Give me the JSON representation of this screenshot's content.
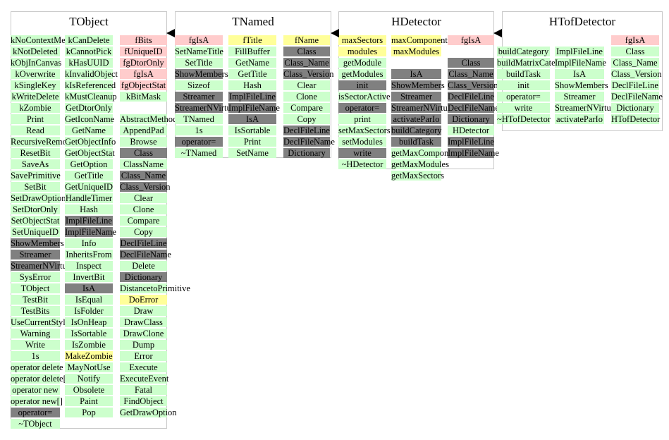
{
  "colors": {
    "green": "#ccffcc",
    "pink": "#ffcccc",
    "yellow": "#ffff99",
    "gray": "#808080"
  },
  "classes": [
    {
      "name": "TObject",
      "columns": [
        [
          [
            "kNoContextMenu",
            "green"
          ],
          [
            "kNotDeleted",
            "green"
          ],
          [
            "kObjInCanvas",
            "green"
          ],
          [
            "kOverwrite",
            "green"
          ],
          [
            "kSingleKey",
            "green"
          ],
          [
            "kWriteDelete",
            "green"
          ],
          [
            "kZombie",
            "green"
          ],
          [
            "Print",
            "green"
          ],
          [
            "Read",
            "green"
          ],
          [
            "RecursiveRemove",
            "green"
          ],
          [
            "ResetBit",
            "green"
          ],
          [
            "SaveAs",
            "green"
          ],
          [
            "SavePrimitive",
            "green"
          ],
          [
            "SetBit",
            "green"
          ],
          [
            "SetDrawOption",
            "green"
          ],
          [
            "SetDtorOnly",
            "green"
          ],
          [
            "SetObjectStat",
            "green"
          ],
          [
            "SetUniqueID",
            "green"
          ],
          [
            "ShowMembers",
            "gray"
          ],
          [
            "Streamer",
            "gray"
          ],
          [
            "StreamerNVirtual",
            "gray"
          ],
          [
            "SysError",
            "green"
          ],
          [
            "TObject",
            "green"
          ],
          [
            "TestBit",
            "green"
          ],
          [
            "TestBits",
            "green"
          ],
          [
            "UseCurrentStyle",
            "green"
          ],
          [
            "Warning",
            "green"
          ],
          [
            "Write",
            "green"
          ],
          [
            "1s",
            "green"
          ],
          [
            "operator delete",
            "green"
          ],
          [
            "operator delete[]",
            "green"
          ],
          [
            "operator new",
            "green"
          ],
          [
            "operator new[]",
            "green"
          ],
          [
            "operator=",
            "gray"
          ],
          [
            "~TObject",
            "green"
          ]
        ],
        [
          [
            "kCanDelete",
            "green"
          ],
          [
            "kCannotPick",
            "green"
          ],
          [
            "kHasUUID",
            "green"
          ],
          [
            "kInvalidObject",
            "green"
          ],
          [
            "kIsReferenced",
            "green"
          ],
          [
            "kMustCleanup",
            "green"
          ],
          [
            "GetDtorOnly",
            "green"
          ],
          [
            "GetIconName",
            "green"
          ],
          [
            "GetName",
            "green"
          ],
          [
            "GetObjectInfo",
            "green"
          ],
          [
            "GetObjectStat",
            "green"
          ],
          [
            "GetOption",
            "green"
          ],
          [
            "GetTitle",
            "green"
          ],
          [
            "GetUniqueID",
            "green"
          ],
          [
            "HandleTimer",
            "green"
          ],
          [
            "Hash",
            "green"
          ],
          [
            "ImplFileLine",
            "gray"
          ],
          [
            "ImplFileName",
            "gray"
          ],
          [
            "Info",
            "green"
          ],
          [
            "InheritsFrom",
            "green"
          ],
          [
            "Inspect",
            "green"
          ],
          [
            "InvertBit",
            "green"
          ],
          [
            "IsA",
            "gray"
          ],
          [
            "IsEqual",
            "green"
          ],
          [
            "IsFolder",
            "green"
          ],
          [
            "IsOnHeap",
            "green"
          ],
          [
            "IsSortable",
            "green"
          ],
          [
            "IsZombie",
            "green"
          ],
          [
            "MakeZombie",
            "yellow"
          ],
          [
            "MayNotUse",
            "green"
          ],
          [
            "Notify",
            "green"
          ],
          [
            "Obsolete",
            "green"
          ],
          [
            "Paint",
            "green"
          ],
          [
            "Pop",
            "green"
          ]
        ],
        [
          [
            "fBits",
            "pink"
          ],
          [
            "fUniqueID",
            "pink"
          ],
          [
            "fgDtorOnly",
            "pink"
          ],
          [
            "fgIsA",
            "pink"
          ],
          [
            "fgObjectStat",
            "pink"
          ],
          [
            "kBitMask",
            "green"
          ],
          [
            "",
            "none"
          ],
          [
            "AbstractMethod",
            "green"
          ],
          [
            "AppendPad",
            "green"
          ],
          [
            "Browse",
            "green"
          ],
          [
            "Class",
            "gray"
          ],
          [
            "ClassName",
            "green"
          ],
          [
            "Class_Name",
            "gray"
          ],
          [
            "Class_Version",
            "gray"
          ],
          [
            "Clear",
            "green"
          ],
          [
            "Clone",
            "green"
          ],
          [
            "Compare",
            "green"
          ],
          [
            "Copy",
            "green"
          ],
          [
            "DeclFileLine",
            "gray"
          ],
          [
            "DeclFileName",
            "gray"
          ],
          [
            "Delete",
            "green"
          ],
          [
            "Dictionary",
            "gray"
          ],
          [
            "DistancetoPrimitive",
            "green"
          ],
          [
            "DoError",
            "yellow"
          ],
          [
            "Draw",
            "green"
          ],
          [
            "DrawClass",
            "green"
          ],
          [
            "DrawClone",
            "green"
          ],
          [
            "Dump",
            "green"
          ],
          [
            "Error",
            "green"
          ],
          [
            "Execute",
            "green"
          ],
          [
            "ExecuteEvent",
            "green"
          ],
          [
            "Fatal",
            "green"
          ],
          [
            "FindObject",
            "green"
          ],
          [
            "GetDrawOption",
            "green"
          ]
        ]
      ]
    },
    {
      "name": "TNamed",
      "columns": [
        [
          [
            "fgIsA",
            "pink"
          ],
          [
            "SetNameTitle",
            "green"
          ],
          [
            "SetTitle",
            "green"
          ],
          [
            "ShowMembers",
            "gray"
          ],
          [
            "Sizeof",
            "green"
          ],
          [
            "Streamer",
            "gray"
          ],
          [
            "StreamerNVirtual",
            "gray"
          ],
          [
            "TNamed",
            "green"
          ],
          [
            "1s",
            "green"
          ],
          [
            "operator=",
            "gray"
          ],
          [
            "~TNamed",
            "green"
          ]
        ],
        [
          [
            "fTitle",
            "yellow"
          ],
          [
            "FillBuffer",
            "green"
          ],
          [
            "GetName",
            "green"
          ],
          [
            "GetTitle",
            "green"
          ],
          [
            "Hash",
            "green"
          ],
          [
            "ImplFileLine",
            "gray"
          ],
          [
            "ImplFileName",
            "gray"
          ],
          [
            "IsA",
            "gray"
          ],
          [
            "IsSortable",
            "green"
          ],
          [
            "Print",
            "green"
          ],
          [
            "SetName",
            "green"
          ]
        ],
        [
          [
            "fName",
            "yellow"
          ],
          [
            "Class",
            "gray"
          ],
          [
            "Class_Name",
            "gray"
          ],
          [
            "Class_Version",
            "gray"
          ],
          [
            "Clear",
            "green"
          ],
          [
            "Clone",
            "green"
          ],
          [
            "Compare",
            "green"
          ],
          [
            "Copy",
            "green"
          ],
          [
            "DeclFileLine",
            "gray"
          ],
          [
            "DeclFileName",
            "gray"
          ],
          [
            "Dictionary",
            "gray"
          ]
        ]
      ]
    },
    {
      "name": "HDetector",
      "columns": [
        [
          [
            "maxSectors",
            "yellow"
          ],
          [
            "modules",
            "yellow"
          ],
          [
            "getModule",
            "green"
          ],
          [
            "getModules",
            "green"
          ],
          [
            "init",
            "gray"
          ],
          [
            "isSectorActive",
            "green"
          ],
          [
            "operator=",
            "gray"
          ],
          [
            "print",
            "green"
          ],
          [
            "setMaxSectors",
            "green"
          ],
          [
            "setModules",
            "green"
          ],
          [
            "write",
            "gray"
          ],
          [
            "~HDetector",
            "green"
          ]
        ],
        [
          [
            "maxComponents",
            "yellow"
          ],
          [
            "maxModules",
            "yellow"
          ],
          [
            "",
            "none"
          ],
          [
            "IsA",
            "gray"
          ],
          [
            "ShowMembers",
            "gray"
          ],
          [
            "Streamer",
            "gray"
          ],
          [
            "StreamerNVirtual",
            "gray"
          ],
          [
            "activateParIo",
            "gray"
          ],
          [
            "buildCategory",
            "gray"
          ],
          [
            "buildTask",
            "gray"
          ],
          [
            "getMaxComponents",
            "green"
          ],
          [
            "getMaxModules",
            "green"
          ],
          [
            "getMaxSectors",
            "green"
          ]
        ],
        [
          [
            "fgIsA",
            "pink"
          ],
          [
            "",
            "none"
          ],
          [
            "Class",
            "gray"
          ],
          [
            "Class_Name",
            "gray"
          ],
          [
            "Class_Version",
            "gray"
          ],
          [
            "DeclFileLine",
            "gray"
          ],
          [
            "DeclFileName",
            "gray"
          ],
          [
            "Dictionary",
            "gray"
          ],
          [
            "HDetector",
            "green"
          ],
          [
            "ImplFileLine",
            "gray"
          ],
          [
            "ImplFileName",
            "gray"
          ]
        ]
      ]
    },
    {
      "name": "HTofDetector",
      "columns": [
        [
          [
            "",
            "none"
          ],
          [
            "buildCategory",
            "green"
          ],
          [
            "buildMatrixCategory",
            "green"
          ],
          [
            "buildTask",
            "green"
          ],
          [
            "init",
            "green"
          ],
          [
            "operator=",
            "green"
          ],
          [
            "write",
            "green"
          ],
          [
            "~HTofDetector",
            "green"
          ]
        ],
        [
          [
            "",
            "none"
          ],
          [
            "ImplFileLine",
            "green"
          ],
          [
            "ImplFileName",
            "green"
          ],
          [
            "IsA",
            "green"
          ],
          [
            "ShowMembers",
            "green"
          ],
          [
            "Streamer",
            "green"
          ],
          [
            "StreamerNVirtual",
            "green"
          ],
          [
            "activateParIo",
            "green"
          ]
        ],
        [
          [
            "fgIsA",
            "pink"
          ],
          [
            "Class",
            "green"
          ],
          [
            "Class_Name",
            "green"
          ],
          [
            "Class_Version",
            "green"
          ],
          [
            "DeclFileLine",
            "green"
          ],
          [
            "DeclFileName",
            "green"
          ],
          [
            "Dictionary",
            "green"
          ],
          [
            "HTofDetector",
            "green"
          ]
        ]
      ]
    }
  ]
}
